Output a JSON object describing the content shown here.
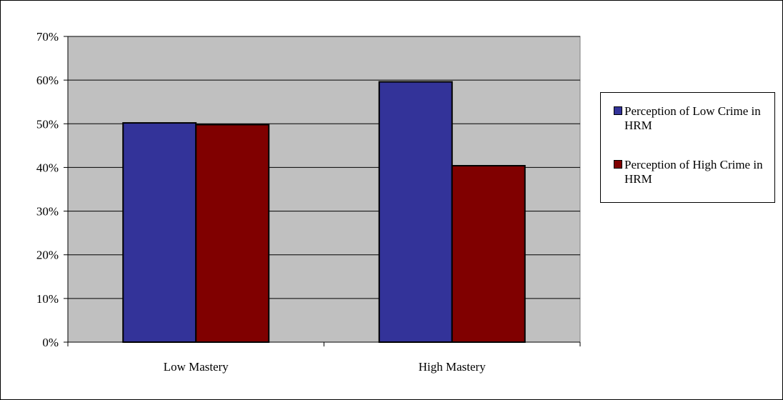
{
  "chart_data": {
    "type": "bar",
    "categories": [
      "Low Mastery",
      "High Mastery"
    ],
    "series": [
      {
        "name": "Perception of Low Crime in HRM",
        "values": [
          50.2,
          59.6
        ],
        "color": "#333399"
      },
      {
        "name": "Perception of High Crime in HRM",
        "values": [
          49.8,
          40.4
        ],
        "color": "#800000"
      }
    ],
    "y_ticks": [
      "0%",
      "10%",
      "20%",
      "30%",
      "40%",
      "50%",
      "60%",
      "70%"
    ],
    "ylim": [
      0,
      70
    ],
    "y_unit": "%",
    "grid": true,
    "plot_background": "#c0c0c0",
    "legend_position": "right",
    "title": "",
    "xlabel": "",
    "ylabel": ""
  }
}
